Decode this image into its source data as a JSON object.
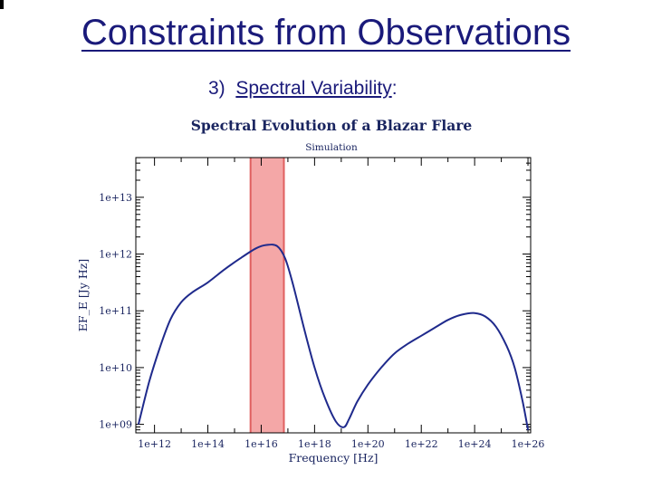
{
  "slide": {
    "title": "Constraints from Observations",
    "subtitle_prefix": "3)  ",
    "subtitle_underlined": "Spectral Variability",
    "subtitle_suffix": ":"
  },
  "colors": {
    "title": "#1a1a7a",
    "curve": "#1f2a8c",
    "band": "#f08a8a",
    "axis": "#000000"
  },
  "chart_data": {
    "type": "line",
    "title": "Spectral Evolution of a Blazar Flare",
    "subtitle": "Simulation",
    "xlabel": "Frequency [Hz]",
    "ylabel": "EF_E [Jy Hz]",
    "x_scale": "log",
    "y_scale": "log",
    "xlim_log10": [
      11.3,
      26.1
    ],
    "ylim_log10": [
      8.85,
      13.7
    ],
    "x_ticks": [
      {
        "value_log10": 12,
        "label": "1e+12"
      },
      {
        "value_log10": 14,
        "label": "1e+14"
      },
      {
        "value_log10": 16,
        "label": "1e+16"
      },
      {
        "value_log10": 18,
        "label": "1e+18"
      },
      {
        "value_log10": 20,
        "label": "1e+20"
      },
      {
        "value_log10": 22,
        "label": "1e+22"
      },
      {
        "value_log10": 24,
        "label": "1e+24"
      },
      {
        "value_log10": 26,
        "label": "1e+26"
      }
    ],
    "y_ticks": [
      {
        "value_log10": 9,
        "label": "1e+09"
      },
      {
        "value_log10": 10,
        "label": "1e+10"
      },
      {
        "value_log10": 11,
        "label": "1e+11"
      },
      {
        "value_log10": 12,
        "label": "1e+12"
      },
      {
        "value_log10": 13,
        "label": "1e+13"
      }
    ],
    "highlight_band_log10": [
      15.6,
      16.85
    ],
    "series": [
      {
        "x_log10": [
          11.4,
          11.8,
          12.2,
          12.6,
          13.0,
          13.4,
          14.0,
          14.6,
          15.2,
          15.8,
          16.2,
          16.6,
          16.9,
          17.2,
          17.6,
          18.0,
          18.4,
          18.8,
          19.1,
          19.3,
          19.6,
          20.0,
          20.5,
          21.0,
          21.5,
          22.0,
          22.5,
          23.0,
          23.5,
          24.0,
          24.4,
          24.8,
          25.2,
          25.5,
          25.8,
          26.0
        ],
        "y_log10": [
          9.0,
          9.75,
          10.35,
          10.85,
          11.15,
          11.32,
          11.5,
          11.72,
          11.92,
          12.1,
          12.16,
          12.14,
          11.92,
          11.45,
          10.7,
          10.0,
          9.45,
          9.05,
          8.95,
          9.1,
          9.4,
          9.7,
          10.0,
          10.25,
          10.42,
          10.56,
          10.7,
          10.84,
          10.93,
          10.96,
          10.9,
          10.72,
          10.38,
          10.0,
          9.4,
          8.9
        ]
      }
    ]
  }
}
